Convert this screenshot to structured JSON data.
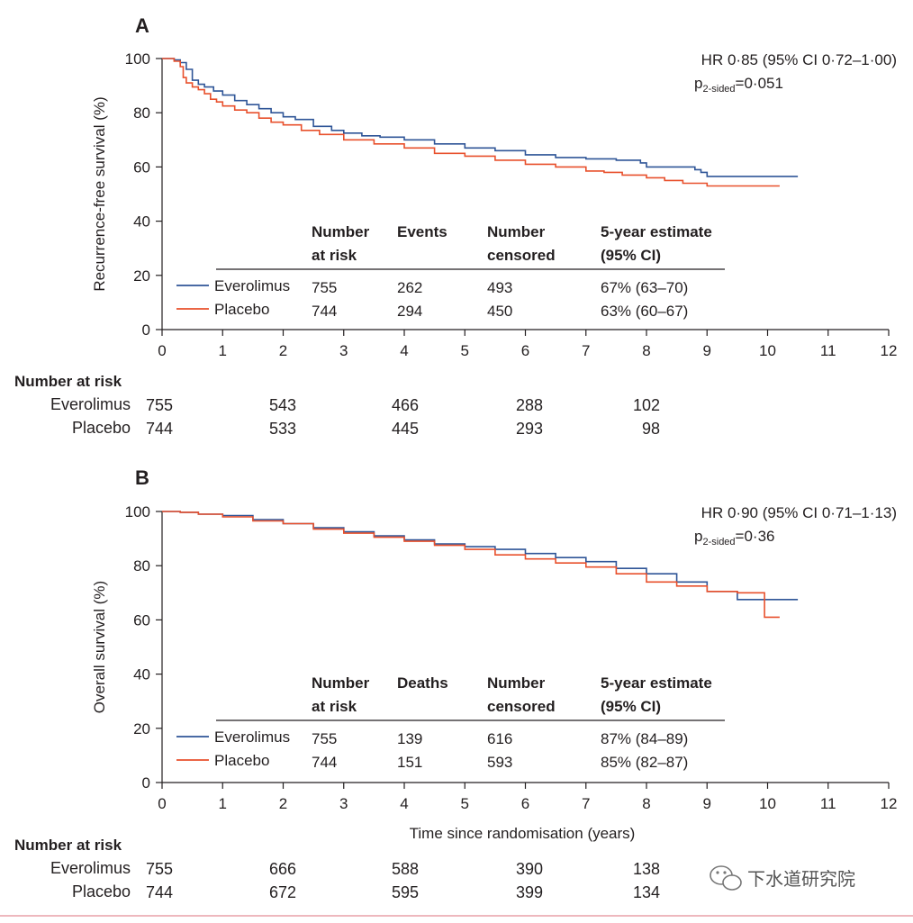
{
  "chart_data": [
    {
      "type": "line",
      "panel": "A",
      "ylabel": "Recurrence-free survival (%)",
      "xlabel": "",
      "xlim": [
        0,
        12
      ],
      "ylim": [
        0,
        100
      ],
      "x_ticks": [
        "0",
        "1",
        "2",
        "3",
        "4",
        "5",
        "6",
        "7",
        "8",
        "9",
        "10",
        "11",
        "12"
      ],
      "y_ticks": [
        "0",
        "20",
        "40",
        "60",
        "80",
        "100"
      ],
      "hr_text": "HR 0·85 (95% CI 0·72–1·00)",
      "p_text": {
        "p": "p",
        "sub": "2-sided",
        "rest": "=0·051"
      },
      "table": {
        "headers": [
          [
            "Number",
            "at risk"
          ],
          [
            "Events",
            ""
          ],
          [
            "Number",
            "censored"
          ],
          [
            "5-year estimate",
            "(95% CI)"
          ]
        ],
        "rows": [
          {
            "name": "Everolimus",
            "at_risk": "755",
            "events": "262",
            "censored": "493",
            "estimate": "67% (63–70)"
          },
          {
            "name": "Placebo",
            "at_risk": "744",
            "events": "294",
            "censored": "450",
            "estimate": "63% (60–67)"
          }
        ]
      },
      "series": [
        {
          "name": "Everolimus",
          "color": "#2f5597",
          "x": [
            0,
            0.2,
            0.3,
            0.4,
            0.5,
            0.6,
            0.7,
            0.85,
            1.0,
            1.2,
            1.4,
            1.6,
            1.8,
            2.0,
            2.2,
            2.5,
            2.8,
            3.0,
            3.3,
            3.6,
            4.0,
            4.5,
            5.0,
            5.5,
            6.0,
            6.5,
            7.0,
            7.5,
            7.9,
            8.0,
            8.5,
            8.8,
            8.9,
            9.0,
            9.5,
            10.0,
            10.5
          ],
          "y": [
            100,
            99.5,
            98.5,
            96,
            92,
            90.5,
            89.5,
            88,
            86.5,
            84.5,
            83,
            81.5,
            80,
            78.5,
            77.5,
            75,
            73.5,
            72.5,
            71.5,
            71,
            70,
            68.5,
            67,
            66,
            64.5,
            63.5,
            63,
            62.5,
            61.5,
            60,
            60,
            59,
            58,
            56.5,
            56.5,
            56.5,
            56.5
          ]
        },
        {
          "name": "Placebo",
          "color": "#e8502c",
          "x": [
            0,
            0.2,
            0.3,
            0.35,
            0.4,
            0.5,
            0.6,
            0.7,
            0.8,
            0.9,
            1.0,
            1.2,
            1.4,
            1.6,
            1.8,
            2.0,
            2.3,
            2.6,
            3.0,
            3.5,
            4.0,
            4.5,
            5.0,
            5.5,
            6.0,
            6.5,
            7.0,
            7.3,
            7.6,
            8.0,
            8.3,
            8.6,
            9.0,
            9.5,
            10.0,
            10.2
          ],
          "y": [
            100,
            99,
            97,
            93,
            91,
            89.5,
            88.5,
            87,
            85,
            84,
            82.5,
            81,
            80,
            78,
            76.5,
            75.5,
            73.5,
            72,
            70,
            68.5,
            67,
            65,
            64,
            62.5,
            61,
            60,
            58.5,
            58,
            57,
            56,
            55,
            54,
            53,
            53,
            53,
            53
          ]
        }
      ]
    },
    {
      "type": "line",
      "panel": "B",
      "ylabel": "Overall survival (%)",
      "xlabel": "Time since randomisation (years)",
      "xlim": [
        0,
        12
      ],
      "ylim": [
        0,
        100
      ],
      "x_ticks": [
        "0",
        "1",
        "2",
        "3",
        "4",
        "5",
        "6",
        "7",
        "8",
        "9",
        "10",
        "11",
        "12"
      ],
      "y_ticks": [
        "0",
        "20",
        "40",
        "60",
        "80",
        "100"
      ],
      "hr_text": "HR 0·90 (95% CI 0·71–1·13)",
      "p_text": {
        "p": "p",
        "sub": "2-sided",
        "rest": "=0·36"
      },
      "table": {
        "headers": [
          [
            "Number",
            "at risk"
          ],
          [
            "Deaths",
            ""
          ],
          [
            "Number",
            "censored"
          ],
          [
            "5-year estimate",
            "(95% CI)"
          ]
        ],
        "rows": [
          {
            "name": "Everolimus",
            "at_risk": "755",
            "events": "139",
            "censored": "616",
            "estimate": "87% (84–89)"
          },
          {
            "name": "Placebo",
            "at_risk": "744",
            "events": "151",
            "censored": "593",
            "estimate": "85% (82–87)"
          }
        ]
      },
      "series": [
        {
          "name": "Everolimus",
          "color": "#2f5597",
          "x": [
            0,
            0.3,
            0.6,
            1.0,
            1.5,
            2.0,
            2.5,
            3.0,
            3.5,
            4.0,
            4.5,
            5.0,
            5.5,
            6.0,
            6.5,
            7.0,
            7.5,
            8.0,
            8.5,
            9.0,
            9.5,
            10.0,
            10.5
          ],
          "y": [
            100,
            99.7,
            99,
            98.5,
            97,
            95.5,
            94,
            92.5,
            91,
            89.5,
            88,
            87,
            86,
            84.5,
            83,
            81.5,
            79,
            77,
            74,
            70.5,
            67.5,
            67.5,
            67.5
          ]
        },
        {
          "name": "Placebo",
          "color": "#e8502c",
          "x": [
            0,
            0.3,
            0.6,
            1.0,
            1.5,
            2.0,
            2.5,
            3.0,
            3.5,
            4.0,
            4.5,
            5.0,
            5.5,
            6.0,
            6.5,
            7.0,
            7.5,
            8.0,
            8.5,
            9.0,
            9.5,
            9.9,
            9.95,
            10.2
          ],
          "y": [
            100,
            99.7,
            99,
            98,
            96.5,
            95.5,
            93.5,
            92,
            90.5,
            89,
            87.5,
            86,
            84,
            82.5,
            81,
            79.5,
            77,
            74,
            72.5,
            70.5,
            70,
            70,
            61,
            61
          ]
        }
      ]
    }
  ],
  "risk_tables": [
    {
      "title": "Number at risk",
      "times": [
        0,
        2,
        4,
        6,
        8
      ],
      "rows": [
        {
          "name": "Everolimus",
          "values": [
            "755",
            "543",
            "466",
            "288",
            "102"
          ]
        },
        {
          "name": "Placebo",
          "values": [
            "744",
            "533",
            "445",
            "293",
            "98"
          ]
        }
      ]
    },
    {
      "title": "Number at risk",
      "times": [
        0,
        2,
        4,
        6,
        8
      ],
      "rows": [
        {
          "name": "Everolimus",
          "values": [
            "755",
            "666",
            "588",
            "390",
            "138"
          ]
        },
        {
          "name": "Placebo",
          "values": [
            "744",
            "672",
            "595",
            "399",
            "134"
          ]
        }
      ]
    }
  ],
  "watermark": "下水道研究院",
  "colors": {
    "everolimus": "#2f5597",
    "placebo": "#e8502c",
    "axis": "#231f20",
    "bottom_rule": "#e8a0a8"
  }
}
